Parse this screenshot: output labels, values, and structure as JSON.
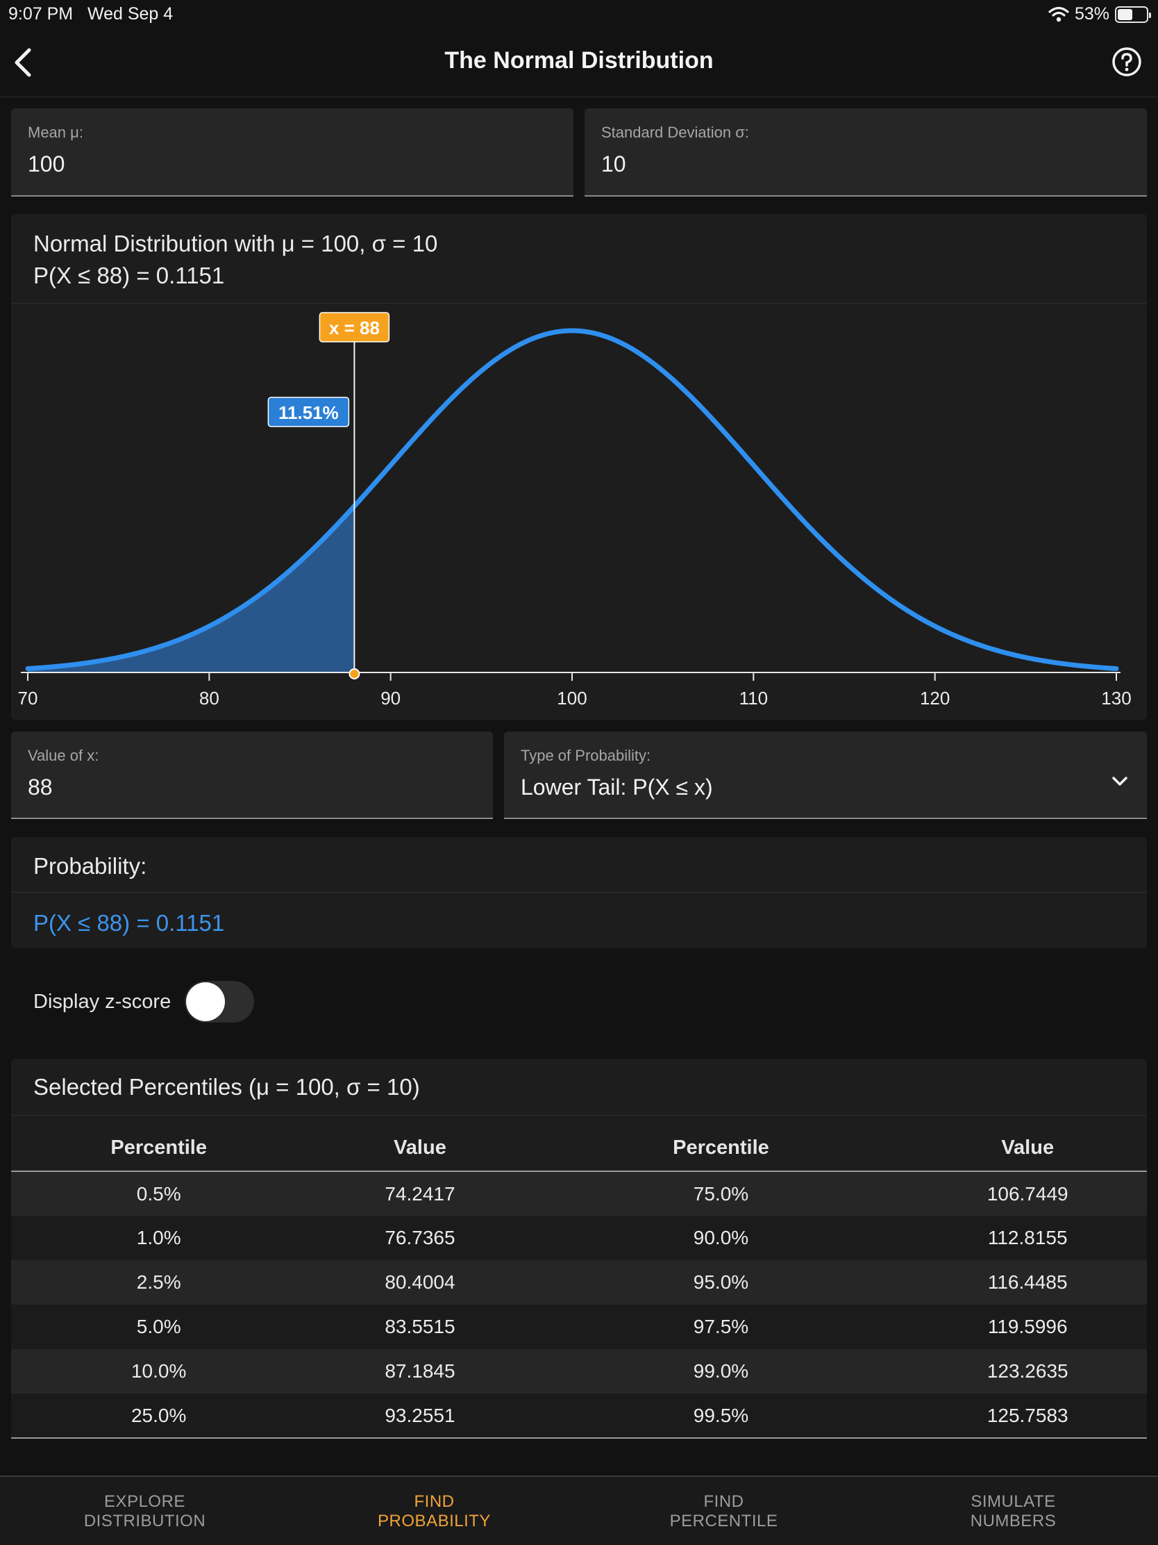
{
  "status_bar": {
    "time": "9:07 PM",
    "date": "Wed Sep 4",
    "battery": "53%",
    "battery_fraction": 0.53
  },
  "nav": {
    "title": "The Normal Distribution",
    "back_icon": "chevron-left-icon",
    "help_icon": "help-circle-icon"
  },
  "inputs": {
    "mean": {
      "label": "Mean μ:",
      "value": "100"
    },
    "sd": {
      "label": "Standard Deviation σ:",
      "value": "10"
    },
    "x": {
      "label": "Value of x:",
      "value": "88"
    },
    "type": {
      "label": "Type of Probability:",
      "value": "Lower Tail: P(X ≤ x)"
    }
  },
  "graph": {
    "title_line1": "Normal Distribution with μ = 100, σ = 10",
    "title_line2": "P(X ≤ 88) = 0.1151",
    "marker_label": "x = 88",
    "area_label": "11.51%"
  },
  "chart_data": {
    "type": "area",
    "distribution": "normal",
    "mean": 100,
    "sd": 10,
    "shaded_upper_x": 88,
    "shaded_probability": 0.1151,
    "xlim": [
      70,
      130
    ],
    "xticks": [
      "70",
      "80",
      "90",
      "100",
      "110",
      "120",
      "130"
    ],
    "colors": {
      "curve": "#2f8fef",
      "shade": "#2b5b91",
      "marker": "#f6a21e"
    }
  },
  "probability": {
    "label": "Probability:",
    "value": "P(X ≤ 88) = 0.1151"
  },
  "zscore": {
    "label": "Display z-score",
    "on": false
  },
  "percentiles": {
    "title": "Selected Percentiles (μ = 100, σ = 10)",
    "headers": [
      "Percentile",
      "Value",
      "Percentile",
      "Value"
    ],
    "rows": [
      [
        "0.5%",
        "74.2417",
        "75.0%",
        "106.7449"
      ],
      [
        "1.0%",
        "76.7365",
        "90.0%",
        "112.8155"
      ],
      [
        "2.5%",
        "80.4004",
        "95.0%",
        "116.4485"
      ],
      [
        "5.0%",
        "83.5515",
        "97.5%",
        "119.5996"
      ],
      [
        "10.0%",
        "87.1845",
        "99.0%",
        "123.2635"
      ],
      [
        "25.0%",
        "93.2551",
        "99.5%",
        "125.7583"
      ]
    ]
  },
  "tabs": [
    {
      "line1": "EXPLORE",
      "line2": "DISTRIBUTION",
      "active": false
    },
    {
      "line1": "FIND",
      "line2": "PROBABILITY",
      "active": true
    },
    {
      "line1": "FIND",
      "line2": "PERCENTILE",
      "active": false
    },
    {
      "line1": "SIMULATE",
      "line2": "NUMBERS",
      "active": false
    }
  ]
}
